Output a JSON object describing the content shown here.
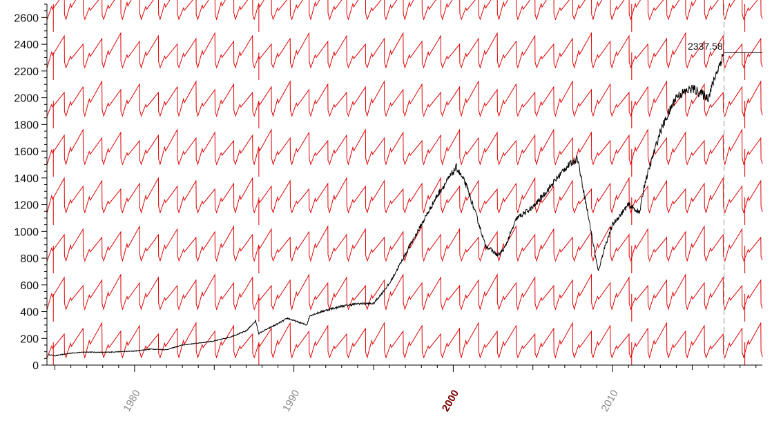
{
  "chart_data": {
    "type": "line",
    "title": "",
    "xlabel": "",
    "ylabel": "",
    "xlim": [
      1974.5,
      2019.4
    ],
    "ylim": [
      0,
      2700
    ],
    "y_ticks": [
      0,
      200,
      400,
      600,
      800,
      1000,
      1200,
      1400,
      1600,
      1800,
      2000,
      2200,
      2400,
      2600
    ],
    "x_ticks": [
      {
        "value": 1980,
        "label": "1980",
        "highlight": false
      },
      {
        "value": 1990,
        "label": "1990",
        "highlight": false
      },
      {
        "value": 2000,
        "label": "2000",
        "highlight": true
      },
      {
        "value": 2010,
        "label": "2010",
        "highlight": false
      }
    ],
    "series": [
      {
        "color": "#000000",
        "x": [
          1974.6,
          1975,
          1976,
          1977,
          1978,
          1979,
          1980,
          1981,
          1982,
          1983,
          1984,
          1985,
          1986,
          1987,
          1987.6,
          1987.8,
          1988,
          1989,
          1989.6,
          1990.8,
          1991,
          1992,
          1993,
          1994,
          1995,
          1996,
          1997,
          1998,
          1999,
          2000.2,
          2000.8,
          2001.5,
          2002,
          2002.8,
          2003.2,
          2004,
          2005,
          2006,
          2007,
          2007.8,
          2008.5,
          2009.1,
          2009.5,
          2010,
          2011,
          2011.7,
          2012,
          2013,
          2014,
          2015,
          2016,
          2016.5,
          2017.0
        ],
        "y": [
          78,
          70,
          90,
          98,
          95,
          100,
          105,
          120,
          115,
          150,
          165,
          180,
          210,
          255,
          330,
          235,
          250,
          310,
          350,
          300,
          370,
          410,
          440,
          460,
          460,
          610,
          830,
          1050,
          1270,
          1480,
          1350,
          1100,
          900,
          820,
          870,
          1100,
          1180,
          1320,
          1470,
          1550,
          1100,
          700,
          880,
          1050,
          1200,
          1140,
          1350,
          1750,
          2010,
          2070,
          2000,
          2180,
          2337.58
        ]
      }
    ],
    "overlay": {
      "color": "#dd0000",
      "note": "red sawtooth pattern"
    },
    "last_value_label": "2337.58",
    "grid": false
  }
}
